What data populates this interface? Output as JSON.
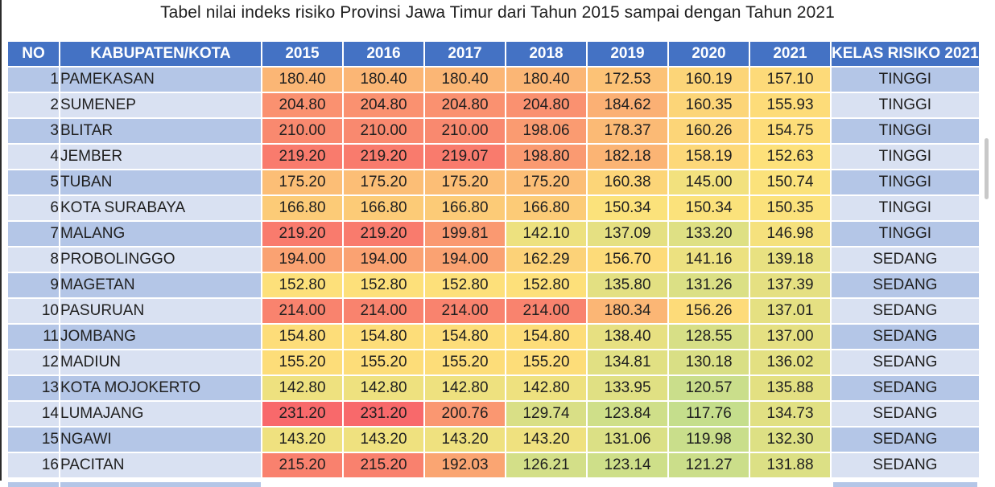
{
  "title": "Tabel nilai indeks risiko Provinsi Jawa Timur dari Tahun 2015 sampai dengan Tahun 2021",
  "headers": [
    "NO",
    "KABUPATEN/KOTA",
    "2015",
    "2016",
    "2017",
    "2018",
    "2019",
    "2020",
    "2021",
    "KELAS RISIKO 2021"
  ],
  "rows": [
    {
      "no": "1",
      "name": "PAMEKASAN",
      "values": [
        "180.40",
        "180.40",
        "180.40",
        "180.40",
        "172.53",
        "160.19",
        "157.10"
      ],
      "kelas": "TINGGI"
    },
    {
      "no": "2",
      "name": "SUMENEP",
      "values": [
        "204.80",
        "204.80",
        "204.80",
        "204.80",
        "184.62",
        "160.35",
        "155.93"
      ],
      "kelas": "TINGGI"
    },
    {
      "no": "3",
      "name": "BLITAR",
      "values": [
        "210.00",
        "210.00",
        "210.00",
        "198.06",
        "178.37",
        "160.26",
        "154.75"
      ],
      "kelas": "TINGGI"
    },
    {
      "no": "4",
      "name": "JEMBER",
      "values": [
        "219.20",
        "219.20",
        "219.07",
        "198.80",
        "182.18",
        "158.19",
        "152.63"
      ],
      "kelas": "TINGGI"
    },
    {
      "no": "5",
      "name": "TUBAN",
      "values": [
        "175.20",
        "175.20",
        "175.20",
        "175.20",
        "160.38",
        "145.00",
        "150.74"
      ],
      "kelas": "TINGGI"
    },
    {
      "no": "6",
      "name": "KOTA SURABAYA",
      "values": [
        "166.80",
        "166.80",
        "166.80",
        "166.80",
        "150.34",
        "150.34",
        "150.35"
      ],
      "kelas": "TINGGI"
    },
    {
      "no": "7",
      "name": "MALANG",
      "values": [
        "219.20",
        "219.20",
        "199.81",
        "142.10",
        "137.09",
        "133.20",
        "146.98"
      ],
      "kelas": "TINGGI"
    },
    {
      "no": "8",
      "name": "PROBOLINGGO",
      "values": [
        "194.00",
        "194.00",
        "194.00",
        "162.29",
        "156.70",
        "141.16",
        "139.18"
      ],
      "kelas": "SEDANG"
    },
    {
      "no": "9",
      "name": "MAGETAN",
      "values": [
        "152.80",
        "152.80",
        "152.80",
        "152.80",
        "135.80",
        "131.26",
        "137.39"
      ],
      "kelas": "SEDANG"
    },
    {
      "no": "10",
      "name": "PASURUAN",
      "values": [
        "214.00",
        "214.00",
        "214.00",
        "214.00",
        "180.34",
        "156.26",
        "137.01"
      ],
      "kelas": "SEDANG"
    },
    {
      "no": "11",
      "name": "JOMBANG",
      "values": [
        "154.80",
        "154.80",
        "154.80",
        "154.80",
        "138.40",
        "128.55",
        "137.00"
      ],
      "kelas": "SEDANG"
    },
    {
      "no": "12",
      "name": "MADIUN",
      "values": [
        "155.20",
        "155.20",
        "155.20",
        "155.20",
        "134.81",
        "130.18",
        "136.02"
      ],
      "kelas": "SEDANG"
    },
    {
      "no": "13",
      "name": "KOTA MOJOKERTO",
      "values": [
        "142.80",
        "142.80",
        "142.80",
        "142.80",
        "133.95",
        "120.57",
        "135.88"
      ],
      "kelas": "SEDANG"
    },
    {
      "no": "14",
      "name": "LUMAJANG",
      "values": [
        "231.20",
        "231.20",
        "200.76",
        "129.74",
        "123.84",
        "117.76",
        "134.73"
      ],
      "kelas": "SEDANG"
    },
    {
      "no": "15",
      "name": "NGAWI",
      "values": [
        "143.20",
        "143.20",
        "143.20",
        "143.20",
        "131.06",
        "119.98",
        "132.30"
      ],
      "kelas": "SEDANG"
    },
    {
      "no": "16",
      "name": "PACITAN",
      "values": [
        "215.20",
        "215.20",
        "192.03",
        "126.21",
        "123.14",
        "121.27",
        "131.88"
      ],
      "kelas": "SEDANG"
    }
  ],
  "colors": {
    "header_bg": "#4472c4",
    "header_text": "#ffffff",
    "row_odd": "#b4c6e7",
    "row_even": "#d9e1f2",
    "scale_low": "#c5de8c",
    "scale_mid": "#fde27a",
    "scale_high": "#f8696b"
  }
}
